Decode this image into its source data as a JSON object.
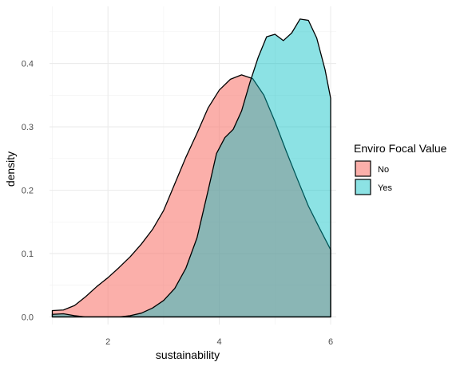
{
  "chart_data": {
    "type": "area",
    "subtype": "density",
    "xlabel": "sustainability",
    "ylabel": "density",
    "xlim": [
      0.95,
      6.1
    ],
    "ylim": [
      -0.012,
      0.49
    ],
    "x_ticks": [
      2,
      4,
      6
    ],
    "x_tick_labels": [
      "2",
      "4",
      "6"
    ],
    "y_ticks": [
      0.0,
      0.1,
      0.2,
      0.3,
      0.4
    ],
    "y_tick_labels": [
      "0.0",
      "0.1",
      "0.2",
      "0.3",
      "0.4"
    ],
    "grid": true,
    "legend": {
      "title": "Enviro Focal Value",
      "position": "right"
    },
    "series": [
      {
        "name": "No",
        "fill": "#F8766D",
        "fill_opacity": 0.58,
        "points": [
          [
            1.0,
            0.01
          ],
          [
            1.2,
            0.011
          ],
          [
            1.4,
            0.018
          ],
          [
            1.6,
            0.032
          ],
          [
            1.8,
            0.048
          ],
          [
            2.0,
            0.062
          ],
          [
            2.2,
            0.078
          ],
          [
            2.4,
            0.095
          ],
          [
            2.6,
            0.115
          ],
          [
            2.8,
            0.138
          ],
          [
            3.0,
            0.168
          ],
          [
            3.2,
            0.21
          ],
          [
            3.4,
            0.252
          ],
          [
            3.6,
            0.29
          ],
          [
            3.8,
            0.33
          ],
          [
            4.0,
            0.358
          ],
          [
            4.2,
            0.375
          ],
          [
            4.4,
            0.382
          ],
          [
            4.6,
            0.376
          ],
          [
            4.8,
            0.35
          ],
          [
            5.0,
            0.308
          ],
          [
            5.2,
            0.262
          ],
          [
            5.4,
            0.218
          ],
          [
            5.6,
            0.175
          ],
          [
            5.8,
            0.14
          ],
          [
            6.0,
            0.106
          ]
        ]
      },
      {
        "name": "Yes",
        "fill": "#00BFC4",
        "fill_opacity": 0.45,
        "points": [
          [
            1.0,
            0.004
          ],
          [
            1.2,
            0.005
          ],
          [
            1.4,
            0.002
          ],
          [
            1.6,
            0.0
          ],
          [
            1.8,
            0.0
          ],
          [
            2.0,
            0.0
          ],
          [
            2.2,
            0.0
          ],
          [
            2.4,
            0.002
          ],
          [
            2.6,
            0.006
          ],
          [
            2.8,
            0.014
          ],
          [
            3.0,
            0.026
          ],
          [
            3.2,
            0.045
          ],
          [
            3.4,
            0.077
          ],
          [
            3.6,
            0.125
          ],
          [
            3.8,
            0.2
          ],
          [
            3.95,
            0.258
          ],
          [
            4.1,
            0.283
          ],
          [
            4.25,
            0.296
          ],
          [
            4.4,
            0.325
          ],
          [
            4.55,
            0.37
          ],
          [
            4.7,
            0.41
          ],
          [
            4.85,
            0.442
          ],
          [
            5.0,
            0.446
          ],
          [
            5.15,
            0.436
          ],
          [
            5.3,
            0.448
          ],
          [
            5.45,
            0.47
          ],
          [
            5.6,
            0.468
          ],
          [
            5.75,
            0.44
          ],
          [
            5.9,
            0.39
          ],
          [
            6.0,
            0.345
          ]
        ]
      }
    ]
  }
}
